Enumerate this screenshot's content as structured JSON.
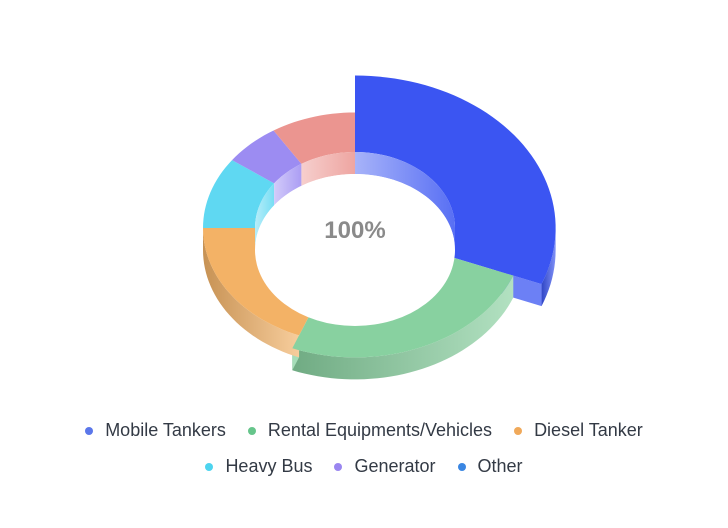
{
  "chart_data": {
    "type": "pie",
    "variant": "3d-donut",
    "center_label": "100%",
    "legend_placement": "bottom",
    "series": [
      {
        "name": "Mobile Tankers",
        "value": 31,
        "color": "#3b55f2"
      },
      {
        "name": "Rental Equipments/Vehicles",
        "value": 25,
        "color": "#88d1a0"
      },
      {
        "name": "Diesel Tanker",
        "value": 19,
        "color": "#f3b266"
      },
      {
        "name": "Heavy Bus",
        "value": 10,
        "color": "#5fd8f2"
      },
      {
        "name": "Generator",
        "value": 6,
        "color": "#9c8cf2"
      },
      {
        "name": "Other",
        "value": 9,
        "color": "#eb9590"
      }
    ]
  },
  "legend_rows": [
    [
      0,
      1,
      2
    ],
    [
      3,
      4,
      5
    ]
  ],
  "legend_dot_colors": [
    "#5b77ea",
    "#66c58b",
    "#f0a95a",
    "#4dd4ef",
    "#9a86f0",
    "#3a86e2"
  ]
}
